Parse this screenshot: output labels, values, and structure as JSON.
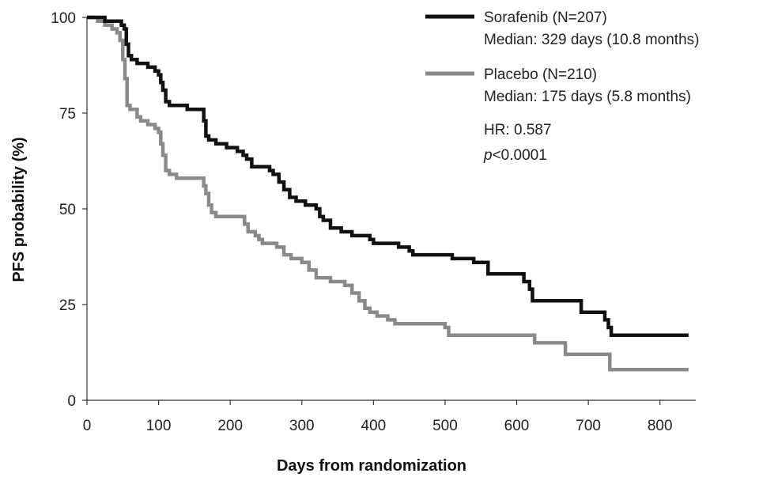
{
  "chart_data": {
    "type": "line",
    "xlabel": "Days from randomization",
    "ylabel": "PFS probability (%)",
    "xlim": [
      0,
      850
    ],
    "ylim": [
      0,
      100
    ],
    "x_ticks": [
      "0",
      "100",
      "200",
      "300",
      "400",
      "500",
      "600",
      "700",
      "800"
    ],
    "y_ticks": [
      "0",
      "25",
      "50",
      "75",
      "100"
    ],
    "grid": false,
    "legend_position": "top-right",
    "series": [
      {
        "name": "Sorafenib (N=207)",
        "median_label": "Median: 329 days (10.8 months)",
        "color": "#111111",
        "step": true,
        "points": [
          [
            0,
            100
          ],
          [
            15,
            100
          ],
          [
            25,
            99
          ],
          [
            45,
            99
          ],
          [
            48,
            98
          ],
          [
            52,
            97
          ],
          [
            55,
            93
          ],
          [
            58,
            90
          ],
          [
            62,
            89
          ],
          [
            70,
            88
          ],
          [
            85,
            87
          ],
          [
            95,
            86
          ],
          [
            100,
            85
          ],
          [
            103,
            83
          ],
          [
            106,
            81
          ],
          [
            110,
            78
          ],
          [
            115,
            77
          ],
          [
            130,
            77
          ],
          [
            140,
            76
          ],
          [
            160,
            76
          ],
          [
            163,
            73
          ],
          [
            166,
            69
          ],
          [
            170,
            68
          ],
          [
            180,
            67
          ],
          [
            195,
            66
          ],
          [
            210,
            65
          ],
          [
            218,
            64
          ],
          [
            223,
            63
          ],
          [
            230,
            61
          ],
          [
            255,
            60
          ],
          [
            260,
            59
          ],
          [
            268,
            57
          ],
          [
            275,
            55
          ],
          [
            283,
            53
          ],
          [
            292,
            52
          ],
          [
            305,
            51
          ],
          [
            320,
            50
          ],
          [
            325,
            48
          ],
          [
            330,
            47
          ],
          [
            340,
            45
          ],
          [
            355,
            44
          ],
          [
            370,
            43
          ],
          [
            395,
            42
          ],
          [
            400,
            41
          ],
          [
            430,
            41
          ],
          [
            435,
            40
          ],
          [
            450,
            39
          ],
          [
            455,
            38
          ],
          [
            505,
            38
          ],
          [
            510,
            37
          ],
          [
            535,
            37
          ],
          [
            540,
            36
          ],
          [
            560,
            33
          ],
          [
            600,
            33
          ],
          [
            610,
            31
          ],
          [
            618,
            29
          ],
          [
            622,
            26
          ],
          [
            655,
            26
          ],
          [
            690,
            23
          ],
          [
            720,
            23
          ],
          [
            723,
            21
          ],
          [
            728,
            19
          ],
          [
            732,
            17
          ],
          [
            840,
            17
          ]
        ]
      },
      {
        "name": "Placebo (N=210)",
        "median_label": "Median: 175 days (5.8 months)",
        "color": "#8a8a8a",
        "step": true,
        "points": [
          [
            0,
            100
          ],
          [
            10,
            100
          ],
          [
            15,
            99
          ],
          [
            25,
            98
          ],
          [
            35,
            97
          ],
          [
            42,
            96
          ],
          [
            46,
            94
          ],
          [
            50,
            89
          ],
          [
            53,
            84
          ],
          [
            56,
            77
          ],
          [
            60,
            76
          ],
          [
            70,
            74
          ],
          [
            75,
            73
          ],
          [
            85,
            72
          ],
          [
            95,
            71
          ],
          [
            100,
            70
          ],
          [
            103,
            67
          ],
          [
            106,
            64
          ],
          [
            110,
            60
          ],
          [
            115,
            59
          ],
          [
            125,
            58
          ],
          [
            160,
            58
          ],
          [
            163,
            56
          ],
          [
            166,
            54
          ],
          [
            170,
            51
          ],
          [
            174,
            49
          ],
          [
            180,
            48
          ],
          [
            200,
            48
          ],
          [
            215,
            48
          ],
          [
            220,
            46
          ],
          [
            225,
            44
          ],
          [
            235,
            43
          ],
          [
            240,
            42
          ],
          [
            245,
            41
          ],
          [
            265,
            40
          ],
          [
            275,
            38
          ],
          [
            285,
            37
          ],
          [
            300,
            36
          ],
          [
            310,
            34
          ],
          [
            320,
            32
          ],
          [
            340,
            31
          ],
          [
            355,
            31
          ],
          [
            360,
            30
          ],
          [
            370,
            28
          ],
          [
            380,
            26
          ],
          [
            388,
            24
          ],
          [
            395,
            23
          ],
          [
            405,
            22
          ],
          [
            420,
            21
          ],
          [
            430,
            20
          ],
          [
            460,
            20
          ],
          [
            500,
            19
          ],
          [
            505,
            17
          ],
          [
            620,
            17
          ],
          [
            625,
            15
          ],
          [
            665,
            15
          ],
          [
            668,
            12
          ],
          [
            700,
            12
          ],
          [
            730,
            8
          ],
          [
            840,
            8
          ]
        ]
      }
    ],
    "annotations": {
      "hr": "HR: 0.587",
      "p_italic": "p",
      "p_rest": "<0.0001"
    }
  }
}
